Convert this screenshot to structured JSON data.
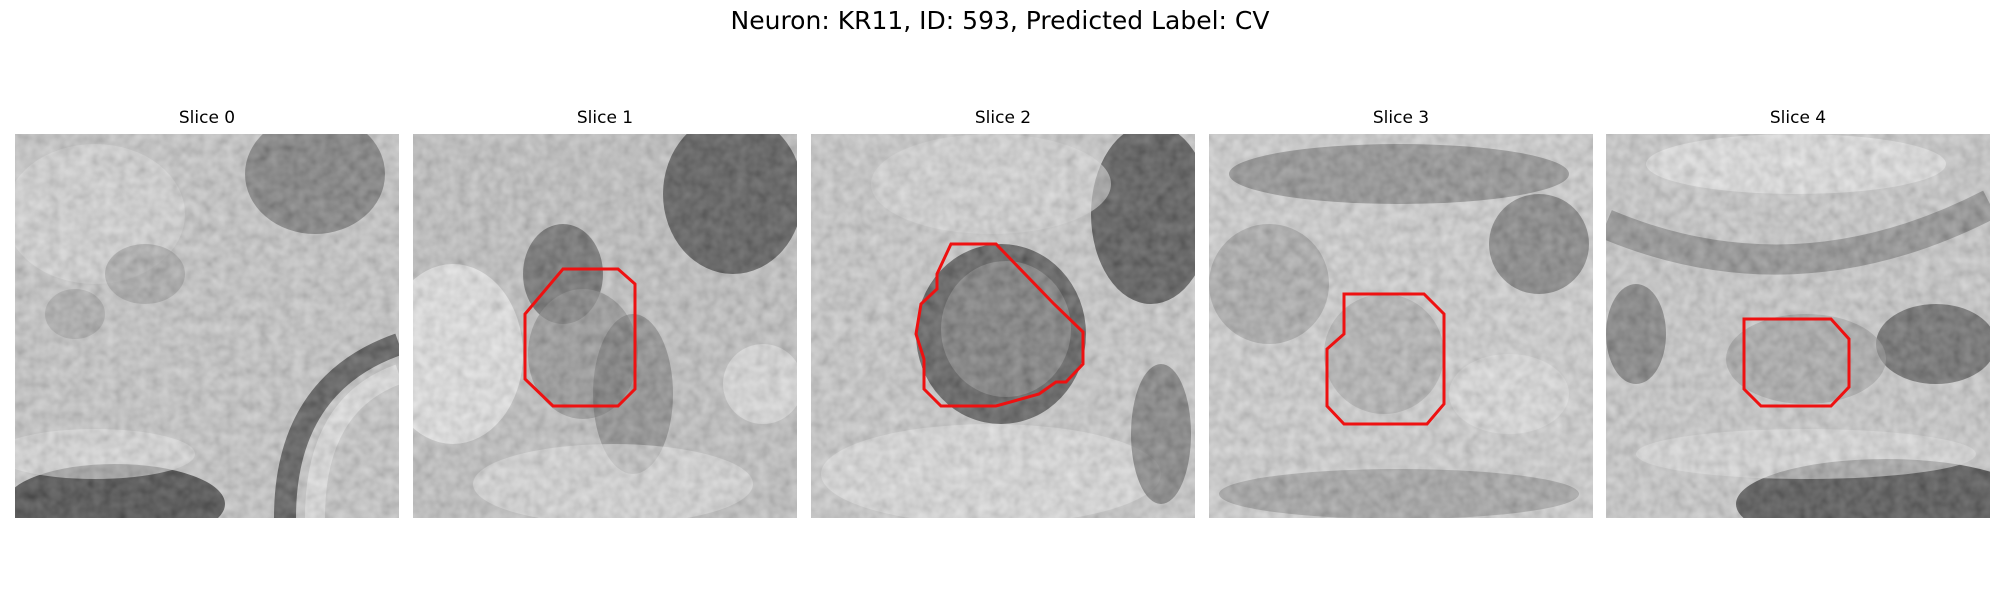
{
  "figure": {
    "title": "Neuron: KR11, ID: 593, Predicted Label: CV"
  },
  "panels": [
    {
      "title": "Slice 0",
      "has_outline": false
    },
    {
      "title": "Slice 1",
      "has_outline": true
    },
    {
      "title": "Slice 2",
      "has_outline": true
    },
    {
      "title": "Slice 3",
      "has_outline": true
    },
    {
      "title": "Slice 4",
      "has_outline": true
    }
  ],
  "colors": {
    "background": "#ffffff",
    "outline": "#ee1111",
    "colormap": "grayscale"
  }
}
